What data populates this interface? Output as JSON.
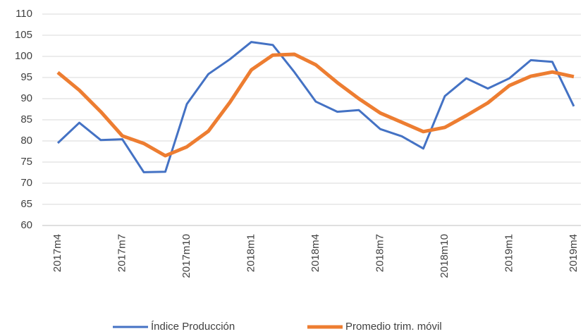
{
  "chart_data": {
    "type": "line",
    "categories": [
      "2017m4",
      null,
      null,
      "2017m7",
      null,
      null,
      "2017m10",
      null,
      null,
      "2018m1",
      null,
      null,
      "2018m4",
      null,
      null,
      "2018m7",
      null,
      null,
      "2018m10",
      null,
      null,
      "2019m1",
      null,
      null,
      "2019m4"
    ],
    "series": [
      {
        "name": "Índice Producción",
        "color": "#4472c4",
        "width": 3,
        "values": [
          79.5,
          84.3,
          80.2,
          80.4,
          72.6,
          72.7,
          88.7,
          95.8,
          99.3,
          103.4,
          102.7,
          96.3,
          89.3,
          86.9,
          87.3,
          82.8,
          81.1,
          78.2,
          90.6,
          94.8,
          92.4,
          94.8,
          99.1,
          98.7,
          88.2
        ]
      },
      {
        "name": "Promedio trim. móvil",
        "color": "#ed7d31",
        "width": 5,
        "values": [
          96.2,
          92.0,
          86.9,
          81.2,
          79.4,
          76.5,
          78.6,
          82.3,
          89.1,
          96.8,
          100.3,
          100.5,
          98.0,
          93.8,
          90.0,
          86.6,
          84.4,
          82.2,
          83.2,
          86.0,
          89.0,
          93.1,
          95.3,
          96.3,
          95.2
        ]
      }
    ],
    "ylim": [
      60,
      110
    ],
    "yticks": [
      60,
      65,
      70,
      75,
      80,
      85,
      90,
      95,
      100,
      105,
      110
    ],
    "grid": true,
    "legend": "bottom"
  }
}
